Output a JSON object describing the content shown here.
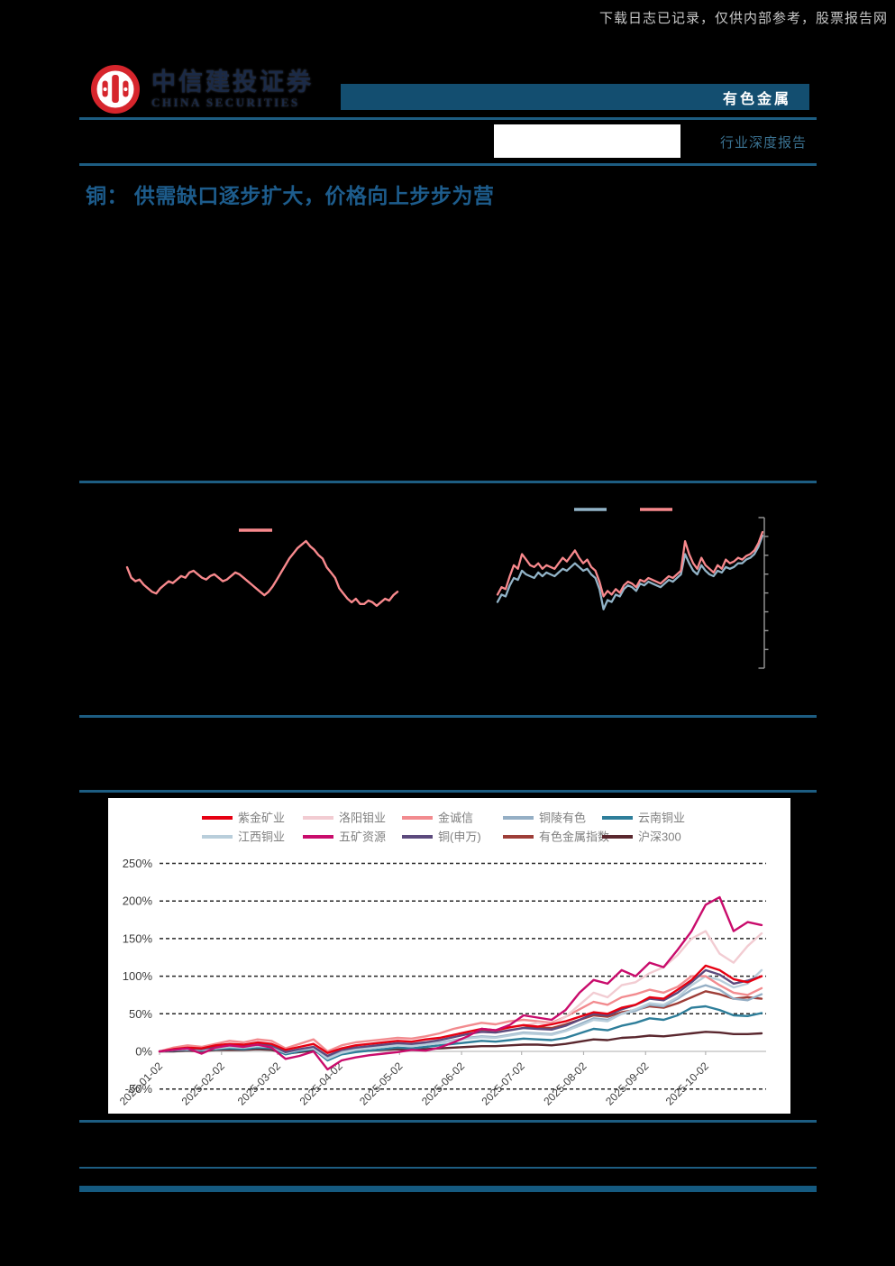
{
  "watermark": "下载日志已记录，仅供内部参考，股票报告网",
  "header": {
    "logo_cn": "中信建投证券",
    "logo_en": "CHINA SECURITIES",
    "category": "有色金属",
    "report_type": "行业深度报告"
  },
  "title": "铜： 供需缺口逐步扩大，价格向上步步为营",
  "colors": {
    "rule_blue": "#1d5d82",
    "bar_blue": "#134e70",
    "title_blue": "#1d5c8c",
    "legend_text": "#7f7f7f",
    "axis_text": "#3d3d3d",
    "axis_line": "#c8c8c8",
    "grid_dash": "#262626",
    "small_pink": "#f8898d",
    "small_blue": "#92b4c8"
  },
  "chart_data": [
    {
      "type": "line",
      "title": "",
      "legend_position": "top",
      "series": [
        {
          "name": "",
          "color": "#f8898d",
          "values": [
            70,
            58,
            54,
            56,
            50,
            46,
            42,
            40,
            46,
            50,
            54,
            52,
            56,
            60,
            58,
            64,
            66,
            62,
            58,
            56,
            60,
            62,
            58,
            54,
            56,
            60,
            64,
            62,
            58,
            54,
            50,
            46,
            42,
            38,
            42,
            48,
            56,
            64,
            72,
            80,
            86,
            92,
            96,
            100,
            94,
            90,
            84,
            80,
            70,
            64,
            58,
            46,
            40,
            34,
            30,
            34,
            28,
            28,
            32,
            30,
            26,
            30,
            34,
            32,
            38,
            42
          ]
        }
      ]
    },
    {
      "type": "line",
      "title": "",
      "legend_position": "top",
      "right_axis": true,
      "series": [
        {
          "name": "",
          "color": "#92b4c8",
          "values": [
            22,
            30,
            28,
            40,
            48,
            46,
            56,
            52,
            50,
            48,
            54,
            50,
            54,
            52,
            50,
            54,
            58,
            56,
            60,
            64,
            60,
            56,
            58,
            52,
            48,
            36,
            14,
            24,
            22,
            30,
            28,
            36,
            40,
            38,
            34,
            42,
            40,
            44,
            42,
            40,
            38,
            42,
            46,
            44,
            48,
            52,
            74,
            64,
            56,
            52,
            62,
            56,
            52,
            50,
            56,
            54,
            60,
            58,
            60,
            64,
            64,
            68,
            70,
            74,
            82,
            94
          ]
        },
        {
          "name": "",
          "color": "#f8898d",
          "values": [
            30,
            38,
            36,
            50,
            62,
            58,
            74,
            68,
            62,
            60,
            64,
            58,
            62,
            60,
            58,
            64,
            70,
            66,
            72,
            78,
            70,
            64,
            68,
            60,
            56,
            44,
            28,
            34,
            30,
            36,
            32,
            40,
            44,
            42,
            38,
            46,
            44,
            48,
            46,
            44,
            42,
            46,
            50,
            48,
            52,
            56,
            88,
            74,
            64,
            58,
            70,
            62,
            58,
            54,
            62,
            58,
            68,
            64,
            66,
            70,
            68,
            72,
            74,
            78,
            86,
            98
          ]
        }
      ]
    },
    {
      "type": "line",
      "title": "",
      "ylim": [
        -50,
        250
      ],
      "yticks": [
        250,
        200,
        150,
        100,
        50,
        0,
        -50
      ],
      "ytick_labels": [
        "250%",
        "200%",
        "150%",
        "100%",
        "50%",
        "0%",
        "-50%"
      ],
      "x_labels": [
        "2025-01-02",
        "2025-02-02",
        "2025-03-02",
        "2025-04-02",
        "2025-05-02",
        "2025-06-02",
        "2025-07-02",
        "2025-08-02",
        "2025-09-02",
        "2025-10-02"
      ],
      "x_label_days": [
        0,
        31,
        59,
        90,
        120,
        151,
        181,
        212,
        243,
        273
      ],
      "grid": "dashed-horizontal",
      "legend_position": "top",
      "unit": "percent change since 2025-01-02",
      "series": [
        {
          "name": "紫金矿业",
          "color": "#e60012",
          "values": [
            0,
            3,
            5,
            4,
            8,
            10,
            9,
            12,
            10,
            2,
            6,
            10,
            -2,
            4,
            8,
            10,
            12,
            14,
            13,
            16,
            18,
            22,
            26,
            30,
            28,
            32,
            35,
            33,
            36,
            40,
            46,
            52,
            50,
            58,
            62,
            72,
            70,
            82,
            95,
            114,
            108,
            96,
            92,
            100
          ]
        },
        {
          "name": "洛阳钼业",
          "color": "#f2ccd2",
          "values": [
            0,
            2,
            4,
            3,
            6,
            8,
            7,
            9,
            8,
            0,
            4,
            8,
            -5,
            2,
            5,
            8,
            10,
            12,
            11,
            14,
            16,
            20,
            24,
            26,
            25,
            30,
            34,
            38,
            36,
            46,
            62,
            78,
            72,
            88,
            92,
            104,
            112,
            128,
            150,
            160,
            130,
            118,
            140,
            157
          ]
        },
        {
          "name": "金诚信",
          "color": "#f28b8f",
          "values": [
            0,
            5,
            8,
            6,
            10,
            14,
            12,
            16,
            14,
            4,
            10,
            16,
            0,
            8,
            12,
            14,
            16,
            18,
            17,
            20,
            24,
            30,
            34,
            38,
            36,
            40,
            42,
            40,
            38,
            46,
            56,
            66,
            62,
            72,
            76,
            82,
            78,
            86,
            100,
            100,
            88,
            78,
            75,
            84
          ]
        },
        {
          "name": "铜陵有色",
          "color": "#95afc5",
          "values": [
            0,
            2,
            3,
            2,
            5,
            6,
            5,
            7,
            6,
            -2,
            2,
            5,
            -8,
            0,
            3,
            5,
            7,
            9,
            8,
            10,
            12,
            15,
            18,
            20,
            19,
            22,
            25,
            24,
            23,
            28,
            36,
            44,
            42,
            50,
            54,
            62,
            60,
            70,
            82,
            88,
            82,
            70,
            68,
            76
          ]
        },
        {
          "name": "云南铜业",
          "color": "#2e7e9a",
          "values": [
            0,
            1,
            2,
            1,
            3,
            4,
            3,
            5,
            4,
            -4,
            0,
            3,
            -12,
            -4,
            -1,
            1,
            3,
            5,
            4,
            6,
            8,
            10,
            12,
            14,
            13,
            15,
            17,
            16,
            15,
            18,
            24,
            30,
            28,
            34,
            38,
            44,
            42,
            48,
            58,
            60,
            55,
            48,
            47,
            51
          ]
        },
        {
          "name": "江西铜业",
          "color": "#b9cedb",
          "values": [
            0,
            2,
            3,
            2,
            4,
            6,
            5,
            7,
            6,
            -2,
            2,
            4,
            -10,
            -2,
            2,
            4,
            6,
            8,
            7,
            9,
            11,
            14,
            17,
            19,
            18,
            21,
            24,
            23,
            22,
            27,
            34,
            42,
            40,
            50,
            56,
            64,
            62,
            72,
            88,
            100,
            95,
            85,
            90,
            108
          ]
        },
        {
          "name": "五矿资源",
          "color": "#c90c6c",
          "values": [
            0,
            2,
            4,
            -3,
            5,
            8,
            6,
            9,
            5,
            -10,
            -6,
            0,
            -24,
            -12,
            -8,
            -5,
            -3,
            -1,
            2,
            1,
            5,
            12,
            20,
            30,
            28,
            35,
            48,
            45,
            42,
            55,
            78,
            95,
            90,
            108,
            100,
            118,
            112,
            135,
            160,
            195,
            205,
            160,
            172,
            168
          ]
        },
        {
          "name": "铜(申万)",
          "color": "#5c4a7d",
          "values": [
            0,
            2,
            4,
            3,
            6,
            8,
            7,
            9,
            8,
            -1,
            3,
            6,
            -6,
            2,
            5,
            7,
            9,
            11,
            10,
            12,
            15,
            19,
            23,
            26,
            25,
            28,
            31,
            30,
            29,
            34,
            42,
            50,
            48,
            56,
            62,
            70,
            68,
            78,
            92,
            108,
            102,
            90,
            94,
            100
          ]
        },
        {
          "name": "有色金属指数",
          "color": "#9e3e38",
          "values": [
            0,
            2,
            4,
            3,
            6,
            8,
            7,
            10,
            9,
            1,
            5,
            8,
            -3,
            4,
            7,
            9,
            11,
            13,
            12,
            14,
            17,
            21,
            25,
            28,
            27,
            30,
            33,
            32,
            31,
            36,
            42,
            48,
            46,
            52,
            55,
            60,
            58,
            64,
            72,
            80,
            76,
            70,
            72,
            70
          ]
        },
        {
          "name": "沪深300",
          "color": "#5a272e",
          "values": [
            0,
            0,
            1,
            0,
            2,
            2,
            2,
            3,
            2,
            -3,
            -1,
            1,
            -7,
            -2,
            0,
            1,
            2,
            3,
            2,
            3,
            4,
            5,
            6,
            7,
            7,
            8,
            9,
            9,
            8,
            10,
            13,
            16,
            15,
            18,
            19,
            21,
            20,
            22,
            24,
            26,
            25,
            23,
            23,
            24
          ]
        }
      ]
    }
  ]
}
